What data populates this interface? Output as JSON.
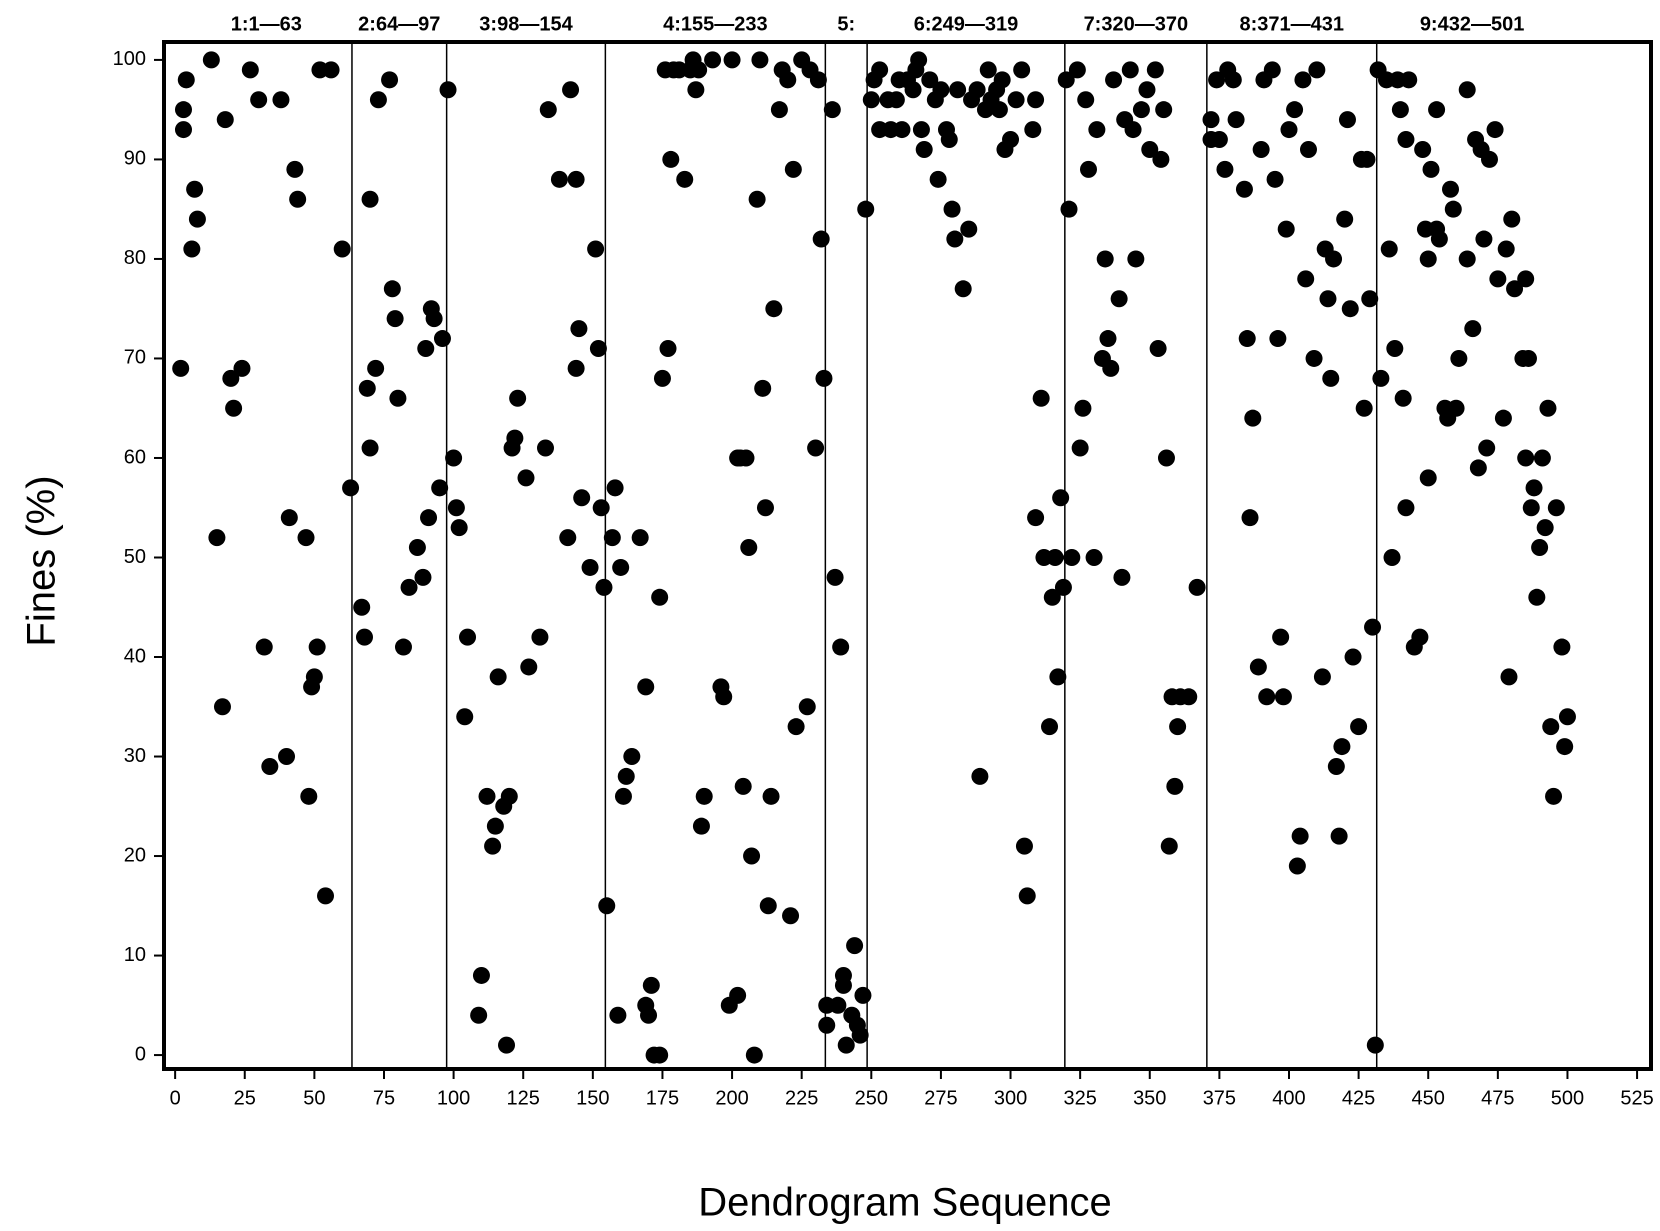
{
  "chart_data": {
    "type": "scatter",
    "xlabel": "Dendrogram Sequence",
    "ylabel": "Fines (%)",
    "color": "#000000",
    "xlim": [
      -4,
      530
    ],
    "ylim": [
      -1.4,
      101.8
    ],
    "xticks": [
      0,
      25,
      50,
      75,
      100,
      125,
      150,
      175,
      200,
      225,
      250,
      275,
      300,
      325,
      350,
      375,
      400,
      425,
      450,
      475,
      500,
      525
    ],
    "yticks": [
      0,
      10,
      20,
      30,
      40,
      50,
      60,
      70,
      80,
      90,
      100
    ],
    "dividers": [
      63.5,
      97.5,
      154.5,
      233.5,
      248.5,
      319.5,
      370.5,
      431.5
    ],
    "cluster_labels": [
      "1:1—63",
      "2:64—97",
      "3:98—154",
      "4:155—233",
      "5:",
      "6:249—319",
      "7:320—370",
      "8:371—431",
      "9:432—501"
    ],
    "x": [
      2,
      3,
      3,
      4,
      6,
      7,
      8,
      13,
      15,
      17,
      18,
      20,
      21,
      24,
      27,
      30,
      32,
      34,
      38,
      40,
      41,
      43,
      44,
      47,
      48,
      49,
      50,
      51,
      52,
      54,
      56,
      60,
      63,
      67,
      68,
      69,
      70,
      70,
      72,
      73,
      77,
      78,
      79,
      80,
      82,
      84,
      87,
      89,
      90,
      91,
      92,
      93,
      95,
      96,
      98,
      100,
      101,
      102,
      104,
      105,
      109,
      110,
      112,
      114,
      115,
      116,
      118,
      119,
      120,
      121,
      122,
      123,
      126,
      127,
      131,
      133,
      134,
      138,
      141,
      142,
      144,
      144,
      145,
      146,
      149,
      151,
      152,
      153,
      154,
      155,
      157,
      158,
      159,
      160,
      161,
      162,
      164,
      167,
      169,
      169,
      170,
      171,
      172,
      174,
      174,
      175,
      176,
      177,
      178,
      179,
      181,
      183,
      185,
      186,
      187,
      188,
      189,
      190,
      193,
      196,
      197,
      199,
      200,
      202,
      202,
      203,
      204,
      205,
      206,
      207,
      208,
      209,
      210,
      211,
      212,
      213,
      214,
      215,
      217,
      218,
      220,
      221,
      222,
      223,
      225,
      227,
      228,
      230,
      231,
      232,
      233,
      234,
      234,
      236,
      237,
      238,
      239,
      240,
      240,
      241,
      243,
      244,
      245,
      246,
      247,
      248,
      250,
      251,
      253,
      253,
      256,
      257,
      259,
      260,
      261,
      263,
      265,
      266,
      267,
      268,
      269,
      271,
      273,
      274,
      275,
      277,
      278,
      279,
      280,
      281,
      283,
      285,
      286,
      288,
      289,
      291,
      292,
      293,
      295,
      296,
      297,
      298,
      300,
      302,
      304,
      305,
      306,
      308,
      309,
      309,
      311,
      312,
      314,
      315,
      316,
      317,
      318,
      319,
      320,
      321,
      322,
      324,
      325,
      326,
      327,
      328,
      330,
      331,
      333,
      334,
      335,
      336,
      337,
      339,
      340,
      341,
      343,
      344,
      345,
      347,
      349,
      350,
      352,
      353,
      354,
      355,
      356,
      357,
      358,
      359,
      360,
      361,
      364,
      367,
      372,
      372,
      374,
      375,
      377,
      378,
      380,
      381,
      384,
      385,
      386,
      387,
      389,
      390,
      391,
      392,
      394,
      395,
      396,
      397,
      398,
      399,
      400,
      402,
      403,
      404,
      405,
      406,
      407,
      409,
      410,
      412,
      413,
      414,
      415,
      416,
      417,
      418,
      419,
      420,
      421,
      422,
      423,
      425,
      426,
      427,
      428,
      429,
      430,
      431,
      432,
      433,
      435,
      436,
      437,
      438,
      439,
      440,
      441,
      442,
      443,
      442,
      445,
      447,
      448,
      449,
      450,
      450,
      451,
      453,
      453,
      454,
      456,
      457,
      458,
      459,
      460,
      461,
      464,
      464,
      466,
      467,
      468,
      469,
      470,
      471,
      472,
      474,
      475,
      477,
      478,
      479,
      480,
      481,
      484,
      485,
      485,
      486,
      487,
      488,
      489,
      490,
      491,
      492,
      493,
      494,
      495,
      496,
      498,
      499,
      500
    ],
    "values": [
      69,
      93,
      95,
      98,
      81,
      87,
      84,
      100,
      52,
      35,
      94,
      68,
      65,
      69,
      99,
      96,
      41,
      29,
      96,
      30,
      54,
      89,
      86,
      52,
      26,
      37,
      38,
      41,
      99,
      16,
      99,
      81,
      57,
      45,
      42,
      67,
      86,
      61,
      69,
      96,
      98,
      77,
      74,
      66,
      41,
      47,
      51,
      48,
      71,
      54,
      75,
      74,
      57,
      72,
      97,
      60,
      55,
      53,
      34,
      42,
      4,
      8,
      26,
      21,
      23,
      38,
      25,
      1,
      26,
      61,
      62,
      66,
      58,
      39,
      42,
      61,
      95,
      88,
      52,
      97,
      88,
      69,
      73,
      56,
      49,
      81,
      71,
      55,
      47,
      15,
      52,
      57,
      4,
      49,
      26,
      28,
      30,
      52,
      37,
      5,
      4,
      7,
      0,
      0,
      46,
      68,
      99,
      71,
      90,
      99,
      99,
      88,
      99,
      100,
      97,
      99,
      23,
      26,
      100,
      37,
      36,
      5,
      100,
      6,
      60,
      60,
      27,
      60,
      51,
      20,
      0,
      86,
      100,
      67,
      55,
      15,
      26,
      75,
      95,
      99,
      98,
      14,
      89,
      33,
      100,
      35,
      99,
      61,
      98,
      82,
      68,
      3,
      5,
      95,
      48,
      5,
      41,
      8,
      7,
      1,
      4,
      11,
      3,
      2,
      6,
      85,
      96,
      98,
      99,
      93,
      96,
      93,
      96,
      98,
      93,
      98,
      97,
      99,
      100,
      93,
      91,
      98,
      96,
      88,
      97,
      93,
      92,
      85,
      82,
      97,
      77,
      83,
      96,
      97,
      28,
      95,
      99,
      96,
      97,
      95,
      98,
      91,
      92,
      96,
      99,
      21,
      16,
      93,
      96,
      54,
      66,
      50,
      33,
      46,
      50,
      38,
      56,
      47,
      98,
      85,
      50,
      99,
      61,
      65,
      96,
      89,
      50,
      93,
      70,
      80,
      72,
      69,
      98,
      76,
      48,
      94,
      99,
      93,
      80,
      95,
      97,
      91,
      99,
      71,
      90,
      95,
      60,
      21,
      36,
      27,
      33,
      36,
      36,
      47,
      94,
      92,
      98,
      92,
      89,
      99,
      98,
      94,
      87,
      72,
      54,
      64,
      39,
      91,
      98,
      36,
      99,
      88,
      72,
      42,
      36,
      83,
      93,
      95,
      19,
      22,
      98,
      78,
      91,
      70,
      99,
      38,
      81,
      76,
      68,
      80,
      29,
      22,
      31,
      84,
      94,
      75,
      40,
      33,
      90,
      65,
      90,
      76,
      43,
      1,
      99,
      68,
      98,
      81,
      50,
      71,
      98,
      95,
      66,
      92,
      98,
      55,
      41,
      42,
      91,
      83,
      80,
      58,
      89,
      83,
      95,
      82,
      65,
      64,
      87,
      85,
      65,
      70,
      97,
      80,
      73,
      92,
      59,
      91,
      82,
      61,
      90,
      93,
      78,
      64,
      81,
      38,
      84,
      77,
      70,
      60,
      78,
      70,
      55,
      57,
      46,
      51,
      60,
      53,
      65,
      33,
      26,
      55,
      41,
      31,
      34
    ]
  }
}
